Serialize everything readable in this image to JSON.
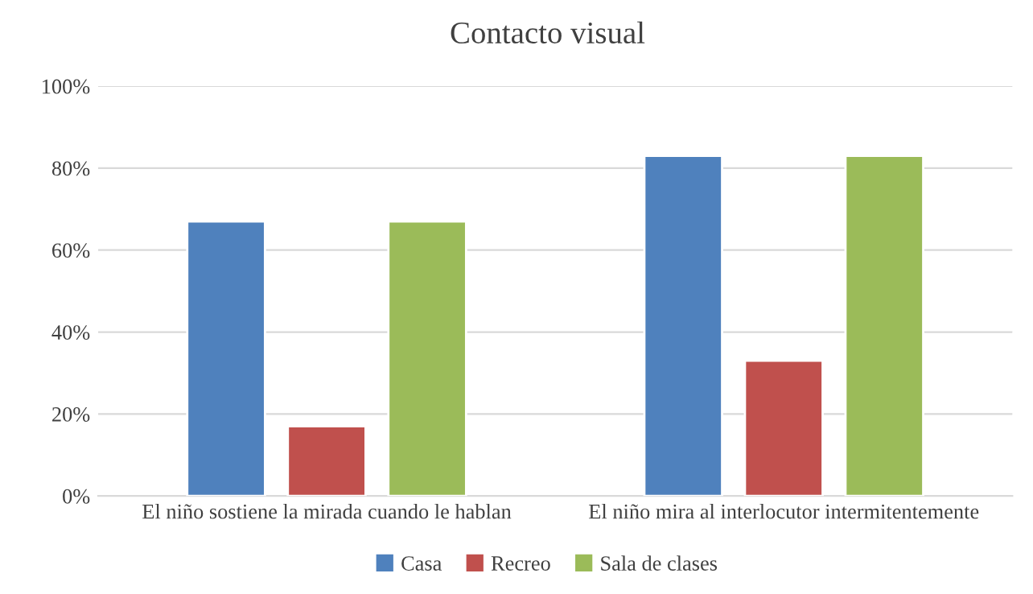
{
  "chart_data": {
    "type": "bar",
    "title": "Contacto visual",
    "categories": [
      "El niño sostiene la mirada cuando le hablan",
      "El niño mira al interlocutor intermitentemente"
    ],
    "series": [
      {
        "name": "Casa",
        "color": "#4f81bd",
        "values": [
          67,
          83
        ]
      },
      {
        "name": "Recreo",
        "color": "#c0504d",
        "values": [
          17,
          33
        ]
      },
      {
        "name": "Sala de clases",
        "color": "#9bbb59",
        "values": [
          67,
          83
        ]
      }
    ],
    "ylim": [
      0,
      100
    ],
    "yticks": [
      {
        "value": 0,
        "label": "0%"
      },
      {
        "value": 20,
        "label": "20%"
      },
      {
        "value": 40,
        "label": "40%"
      },
      {
        "value": 60,
        "label": "60%"
      },
      {
        "value": 80,
        "label": "80%"
      },
      {
        "value": 100,
        "label": "100%"
      }
    ],
    "grid": "y",
    "legend": "bottom"
  }
}
